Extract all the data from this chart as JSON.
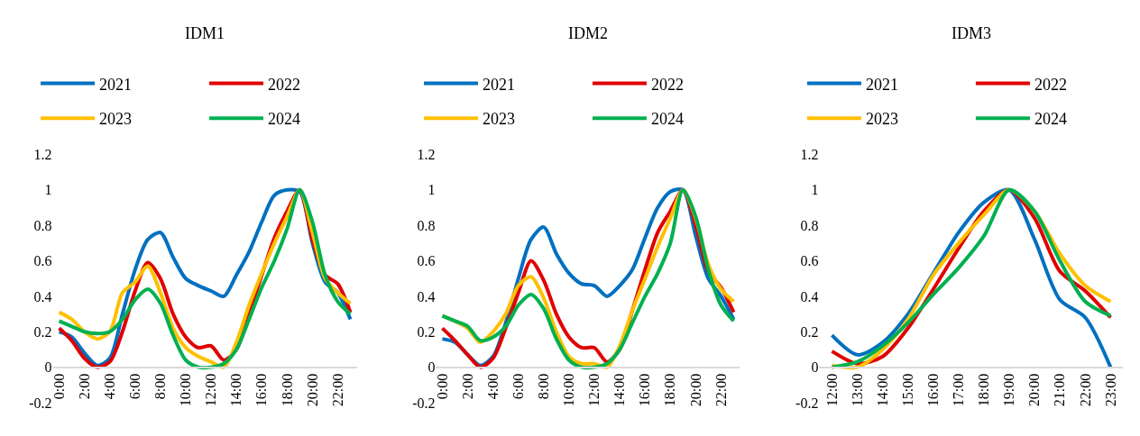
{
  "chart_data": [
    {
      "type": "line",
      "title": "IDM1",
      "categories": [
        "0:00",
        null,
        "2:00",
        null,
        "4:00",
        null,
        "6:00",
        null,
        "8:00",
        null,
        "10:00",
        null,
        "12:00",
        null,
        "14:00",
        null,
        "16:00",
        null,
        "18:00",
        null,
        "20:00",
        null,
        "22:00",
        null
      ],
      "ylim": [
        -0.2,
        1.2
      ],
      "yticks": [
        -0.2,
        0,
        0.2,
        0.4,
        0.6,
        0.8,
        1,
        1.2
      ],
      "grid": false,
      "legend": "top",
      "marker": "none",
      "line_style": "solid",
      "series": [
        {
          "name": "2021",
          "color": "#0070c0",
          "values": [
            0.2,
            0.17,
            0.08,
            0.01,
            0.05,
            0.3,
            0.55,
            0.72,
            0.76,
            0.62,
            0.5,
            0.46,
            0.43,
            0.4,
            0.52,
            0.65,
            0.82,
            0.97,
            1.0,
            0.99,
            0.7,
            0.48,
            0.42,
            0.27
          ]
        },
        {
          "name": "2022",
          "color": "#e00000",
          "values": [
            0.22,
            0.15,
            0.05,
            0.0,
            0.03,
            0.2,
            0.43,
            0.59,
            0.5,
            0.3,
            0.17,
            0.11,
            0.12,
            0.04,
            0.1,
            0.3,
            0.52,
            0.73,
            0.88,
            1.0,
            0.72,
            0.52,
            0.47,
            0.31
          ]
        },
        {
          "name": "2023",
          "color": "#ffc000",
          "values": [
            0.31,
            0.27,
            0.2,
            0.16,
            0.2,
            0.42,
            0.48,
            0.57,
            0.42,
            0.22,
            0.11,
            0.06,
            0.03,
            0.0,
            0.14,
            0.35,
            0.53,
            0.7,
            0.85,
            1.0,
            0.76,
            0.5,
            0.42,
            0.36
          ]
        },
        {
          "name": "2024",
          "color": "#00b050",
          "values": [
            0.26,
            0.23,
            0.2,
            0.19,
            0.2,
            0.27,
            0.38,
            0.44,
            0.36,
            0.18,
            0.04,
            0.0,
            0.0,
            0.02,
            0.1,
            0.27,
            0.45,
            0.6,
            0.78,
            1.0,
            0.82,
            0.52,
            0.37,
            0.3
          ]
        }
      ]
    },
    {
      "type": "line",
      "title": "IDM2",
      "categories": [
        "0:00",
        null,
        "2:00",
        null,
        "4:00",
        null,
        "6:00",
        null,
        "8:00",
        null,
        "10:00",
        null,
        "12:00",
        null,
        "14:00",
        null,
        "16:00",
        null,
        "18:00",
        null,
        "20:00",
        null,
        "22:00",
        null
      ],
      "ylim": [
        -0.2,
        1.2
      ],
      "yticks": [
        -0.2,
        0,
        0.2,
        0.4,
        0.6,
        0.8,
        1,
        1.2
      ],
      "grid": false,
      "legend": "top",
      "marker": "none",
      "line_style": "solid",
      "series": [
        {
          "name": "2021",
          "color": "#0070c0",
          "values": [
            0.16,
            0.14,
            0.07,
            0.01,
            0.06,
            0.25,
            0.5,
            0.72,
            0.79,
            0.64,
            0.53,
            0.47,
            0.46,
            0.4,
            0.46,
            0.55,
            0.73,
            0.9,
            0.99,
            1.0,
            0.74,
            0.5,
            0.4,
            0.27
          ]
        },
        {
          "name": "2022",
          "color": "#e00000",
          "values": [
            0.22,
            0.15,
            0.07,
            0.0,
            0.05,
            0.22,
            0.42,
            0.6,
            0.49,
            0.3,
            0.17,
            0.11,
            0.11,
            0.03,
            0.1,
            0.32,
            0.55,
            0.76,
            0.88,
            1.0,
            0.8,
            0.54,
            0.45,
            0.31
          ]
        },
        {
          "name": "2023",
          "color": "#ffc000",
          "values": [
            0.29,
            0.26,
            0.22,
            0.14,
            0.2,
            0.3,
            0.46,
            0.51,
            0.39,
            0.2,
            0.06,
            0.02,
            0.02,
            0.0,
            0.12,
            0.32,
            0.5,
            0.68,
            0.84,
            1.0,
            0.84,
            0.58,
            0.44,
            0.37
          ]
        },
        {
          "name": "2024",
          "color": "#00b050",
          "values": [
            0.29,
            0.26,
            0.23,
            0.15,
            0.17,
            0.23,
            0.35,
            0.41,
            0.33,
            0.16,
            0.04,
            0.0,
            0.0,
            0.02,
            0.1,
            0.25,
            0.4,
            0.53,
            0.7,
            1.0,
            0.85,
            0.55,
            0.35,
            0.26
          ]
        }
      ]
    },
    {
      "type": "line",
      "title": "IDM3",
      "categories": [
        "12:00",
        "13:00",
        "14:00",
        "15:00",
        "16:00",
        "17:00",
        "18:00",
        "19:00",
        "20:00",
        "21:00",
        "22:00",
        "23:00"
      ],
      "ylim": [
        -0.2,
        1.2
      ],
      "yticks": [
        -0.2,
        0,
        0.2,
        0.4,
        0.6,
        0.8,
        1,
        1.2
      ],
      "grid": false,
      "legend": "top",
      "marker": "none",
      "line_style": "solid",
      "series": [
        {
          "name": "2021",
          "color": "#0070c0",
          "values": [
            0.18,
            0.07,
            0.14,
            0.3,
            0.53,
            0.76,
            0.93,
            1.0,
            0.72,
            0.38,
            0.28,
            0.0
          ]
        },
        {
          "name": "2022",
          "color": "#e00000",
          "values": [
            0.09,
            0.02,
            0.06,
            0.22,
            0.44,
            0.67,
            0.88,
            1.0,
            0.84,
            0.54,
            0.43,
            0.28
          ]
        },
        {
          "name": "2023",
          "color": "#ffc000",
          "values": [
            0.01,
            0.0,
            0.1,
            0.27,
            0.52,
            0.7,
            0.86,
            1.0,
            0.88,
            0.64,
            0.46,
            0.37
          ]
        },
        {
          "name": "2024",
          "color": "#00b050",
          "values": [
            0.0,
            0.03,
            0.12,
            0.25,
            0.41,
            0.56,
            0.74,
            1.0,
            0.88,
            0.6,
            0.37,
            0.29
          ]
        }
      ]
    }
  ]
}
